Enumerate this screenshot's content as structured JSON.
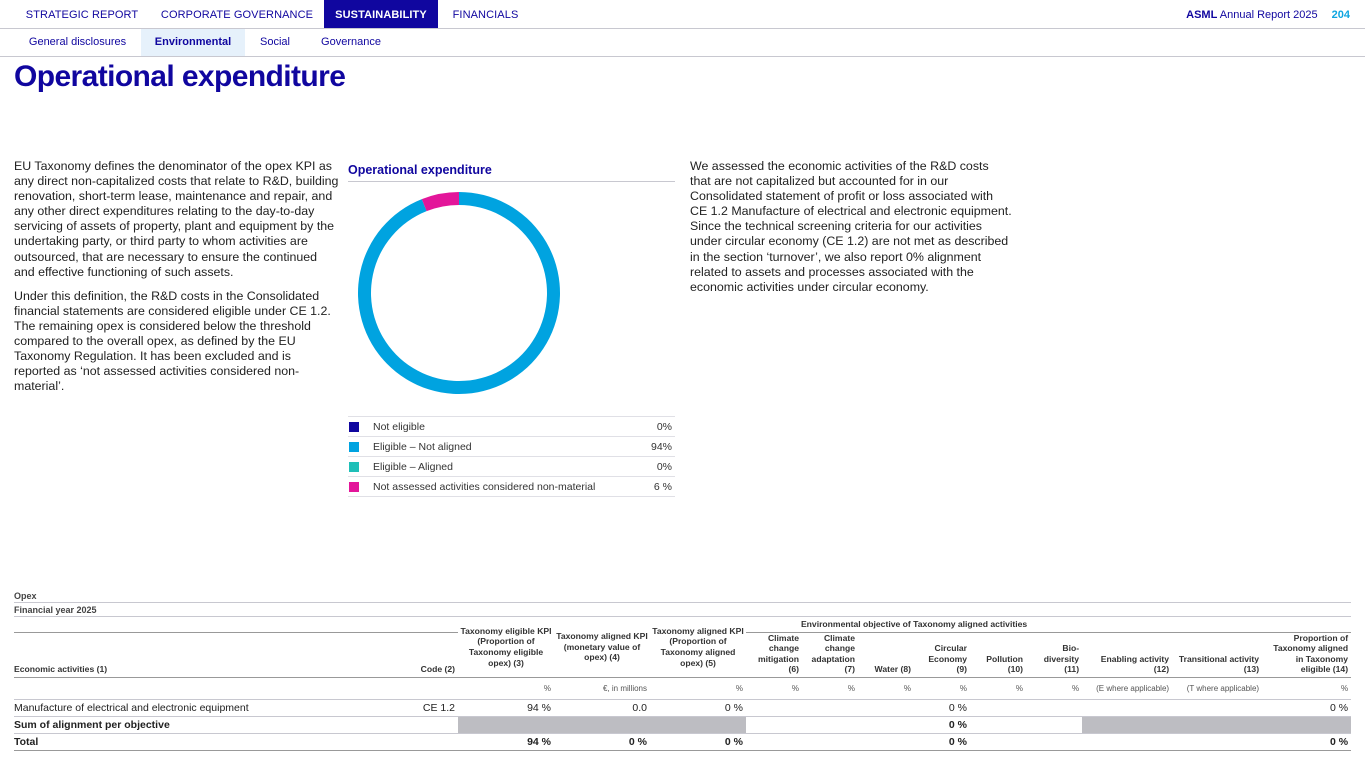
{
  "topnav": {
    "tabs": [
      "STRATEGIC REPORT",
      "CORPORATE GOVERNANCE",
      "SUSTAINABILITY",
      "FINANCIALS"
    ],
    "brand_bold": "ASML",
    "brand_text": "Annual Report 2025",
    "page_number": "204"
  },
  "subnav": {
    "tabs": [
      "General disclosures",
      "Environmental",
      "Social",
      "Governance"
    ]
  },
  "page_title": "Operational expenditure",
  "left_text": {
    "p1": "EU Taxonomy defines the denominator of the opex KPI as any direct non-capitalized costs that relate to R&D, building renovation, short-term lease, maintenance and repair, and any other direct expenditures relating to the day-to-day servicing of assets of property, plant and equipment by the undertaking party, or third party to whom activities are outsourced, that are necessary to ensure the continued and effective functioning of such assets.",
    "p2": "Under this definition, the R&D costs in the Consolidated financial statements are considered eligible under CE 1.2. The remaining opex is considered below the threshold compared to the overall opex, as defined by the EU Taxonomy Regulation. It has been excluded and is reported as ‘not assessed activities considered non-material’."
  },
  "right_text": "We assessed the economic activities of the R&D costs that are not capitalized but accounted for in our Consolidated statement of profit or loss associated with CE 1.2 Manufacture of electrical and electronic equipment. Since the technical screening criteria for our activities under circular economy (CE 1.2) are not met as described in the section ‘turnover’, we also report 0% alignment related to assets and processes associated with the economic activities under circular economy.",
  "chart_data": {
    "type": "pie",
    "title": "Operational expenditure",
    "categories": [
      "Not eligible",
      "Eligible – Not aligned",
      "Eligible – Aligned",
      "Not assessed activities considered non-material"
    ],
    "values": [
      0,
      94,
      0,
      6
    ],
    "value_labels": [
      "0%",
      "94%",
      "0%",
      "6 %"
    ],
    "colors": [
      "#10069f",
      "#00a3e0",
      "#1fbfb8",
      "#e3169a"
    ]
  },
  "table": {
    "caption": "Opex",
    "subcaption": "Financial year 2025",
    "env_header": "Environmental objective of Taxonomy aligned activities",
    "headers": [
      "Economic activities (1)",
      "Code (2)",
      "Taxonomy eligible KPI (Proportion of Taxonomy eligible opex) (3)",
      "Taxonomy aligned KPI (monetary value of opex) (4)",
      "Taxonomy aligned KPI (Proportion of Taxonomy aligned opex) (5)",
      "Climate change mitigation (6)",
      "Climate change adaptation (7)",
      "Water (8)",
      "Circular Economy (9)",
      "Pollution (10)",
      "Bio-diversity (11)",
      "Enabling activity (12)",
      "Transitional activity (13)",
      "Proportion of Taxonomy aligned in Taxonomy eligible (14)"
    ],
    "units": [
      "",
      "",
      "%",
      "€, in millions",
      "%",
      "%",
      "%",
      "%",
      "%",
      "%",
      "%",
      "(E where applicable)",
      "(T where applicable)",
      "%"
    ],
    "rows": [
      [
        "Manufacture of electrical and electronic equipment",
        "CE 1.2",
        "94 %",
        "0.0",
        "0 %",
        "",
        "",
        "",
        "0 %",
        "",
        "",
        "",
        "",
        "0 %"
      ],
      [
        "Sum of alignment per objective",
        "",
        "",
        "",
        "",
        "",
        "",
        "",
        "0 %",
        "",
        "",
        "",
        "",
        ""
      ],
      [
        "Total",
        "",
        "94 %",
        "0 %",
        "0 %",
        "",
        "",
        "",
        "0 %",
        "",
        "",
        "",
        "",
        "0 %"
      ]
    ]
  }
}
